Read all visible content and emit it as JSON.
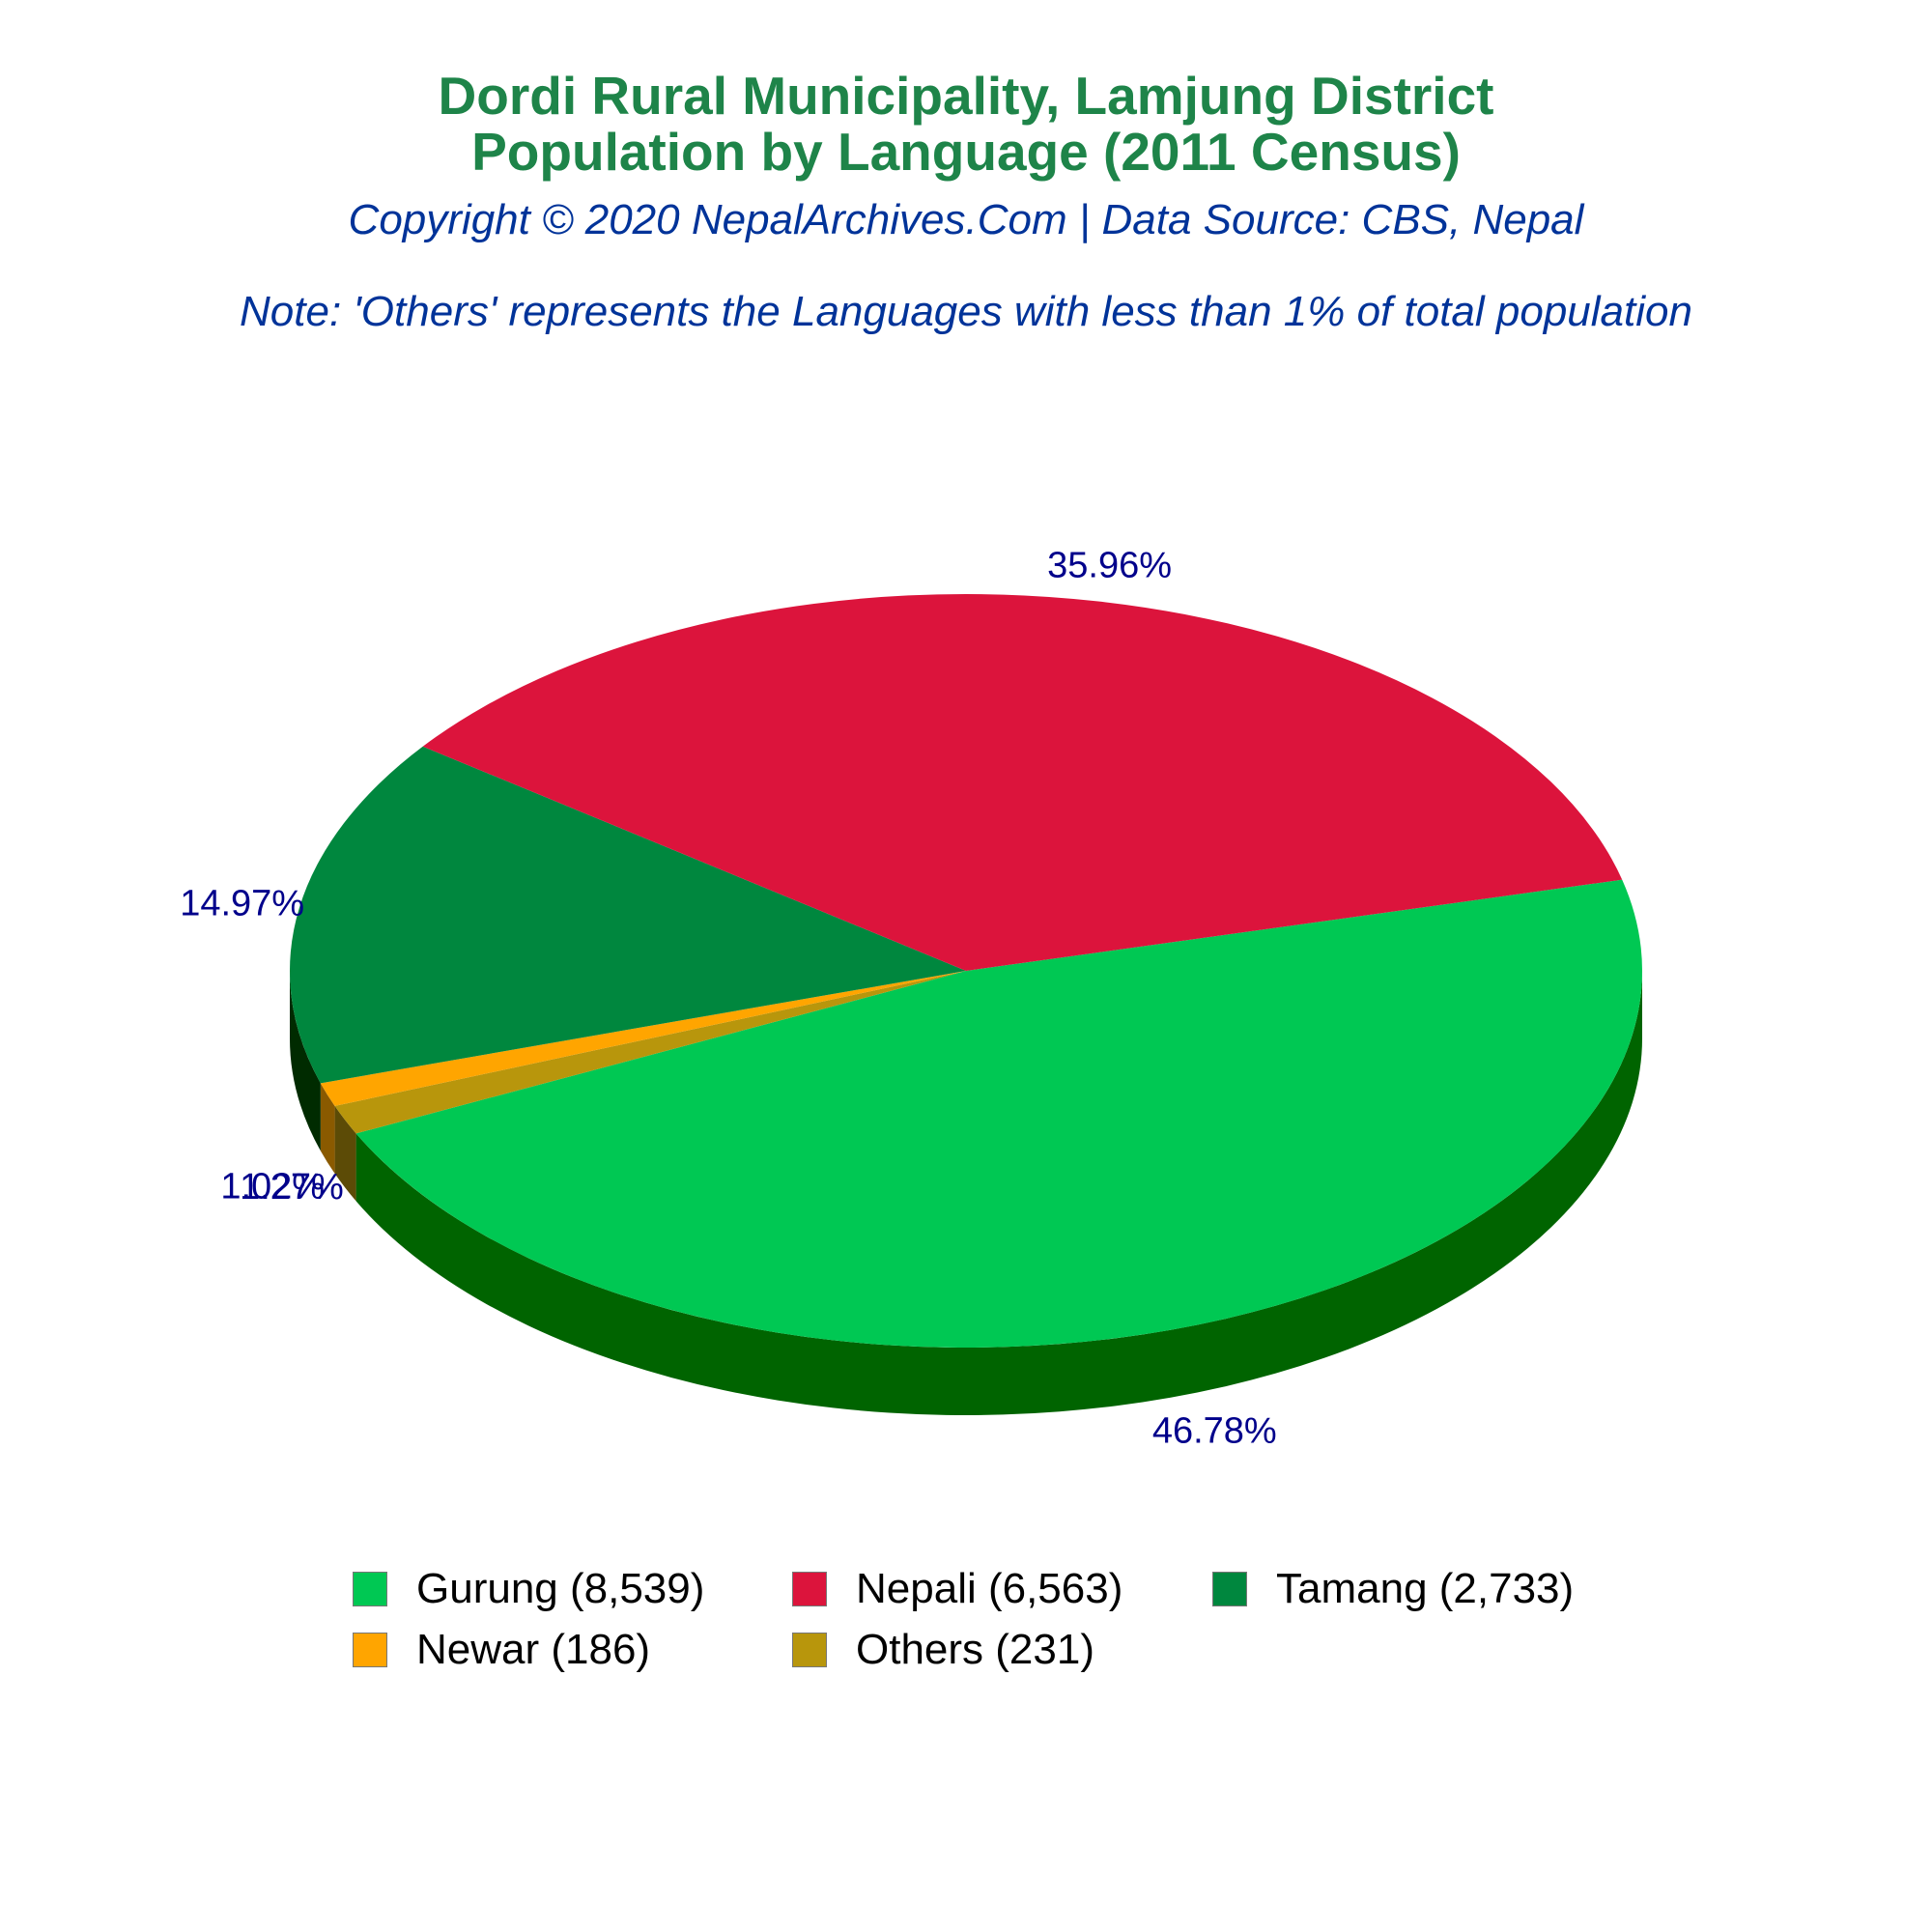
{
  "header": {
    "title_line1": "Dordi Rural Municipality, Lamjung District",
    "title_line2": "Population by Language (2011 Census)",
    "subtitle": "Copyright © 2020 NepalArchives.Com | Data Source: CBS, Nepal",
    "note": "Note: 'Others' represents the Languages with less than 1% of total population"
  },
  "chart_data": {
    "type": "pie",
    "title": "Dordi Rural Municipality, Lamjung District Population by Language (2011 Census)",
    "style": "3d-tilted",
    "slices": [
      {
        "label": "Gurung (8,539)",
        "value": 8539,
        "percent_label": "46.78%",
        "color": "#00c853",
        "side_color": "#006400"
      },
      {
        "label": "Others (231)",
        "value": 231,
        "percent_label": "1.27%",
        "color": "#b8960c",
        "side_color": "#5c4b06"
      },
      {
        "label": "Newar (186)",
        "value": 186,
        "percent_label": "1.02%",
        "color": "#ffa500",
        "side_color": "#8a5a00"
      },
      {
        "label": "Tamang (2,733)",
        "value": 2733,
        "percent_label": "14.97%",
        "color": "#00873e",
        "side_color": "#002b00"
      },
      {
        "label": "Nepali (6,563)",
        "value": 6563,
        "percent_label": "35.96%",
        "color": "#dc143c",
        "side_color": "#800000"
      }
    ],
    "legend": {
      "placement": "bottom",
      "items": [
        {
          "label": "Gurung (8,539)",
          "color": "#00c853"
        },
        {
          "label": "Nepali (6,563)",
          "color": "#dc143c"
        },
        {
          "label": "Tamang (2,733)",
          "color": "#00873e"
        },
        {
          "label": "Newar (186)",
          "color": "#ffa500"
        },
        {
          "label": "Others (231)",
          "color": "#b8960c"
        }
      ]
    },
    "label_color": "#00008b"
  }
}
